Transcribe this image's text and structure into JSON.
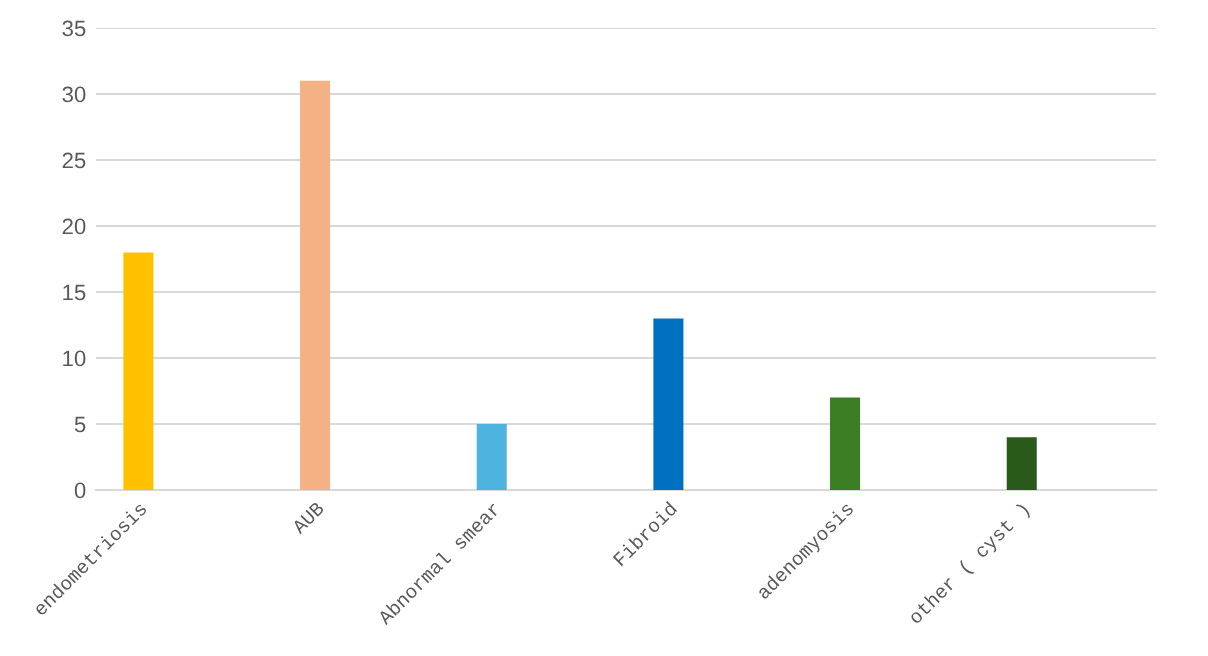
{
  "chart_data": {
    "type": "bar",
    "categories": [
      "endometriosis",
      "AUB",
      "Abnormal smear",
      "Fibroid",
      "adenomyosis",
      "other ( cyst )"
    ],
    "values": [
      18,
      31,
      5,
      13,
      7,
      4
    ],
    "colors": [
      "#ffc000",
      "#f4b183",
      "#4fb3e0",
      "#0070c0",
      "#3a7d22",
      "#2a5a1a"
    ],
    "ylim": [
      0,
      35
    ],
    "yticks": [
      0,
      5,
      10,
      15,
      20,
      25,
      30,
      35
    ],
    "grid": "y",
    "legend": false
  }
}
